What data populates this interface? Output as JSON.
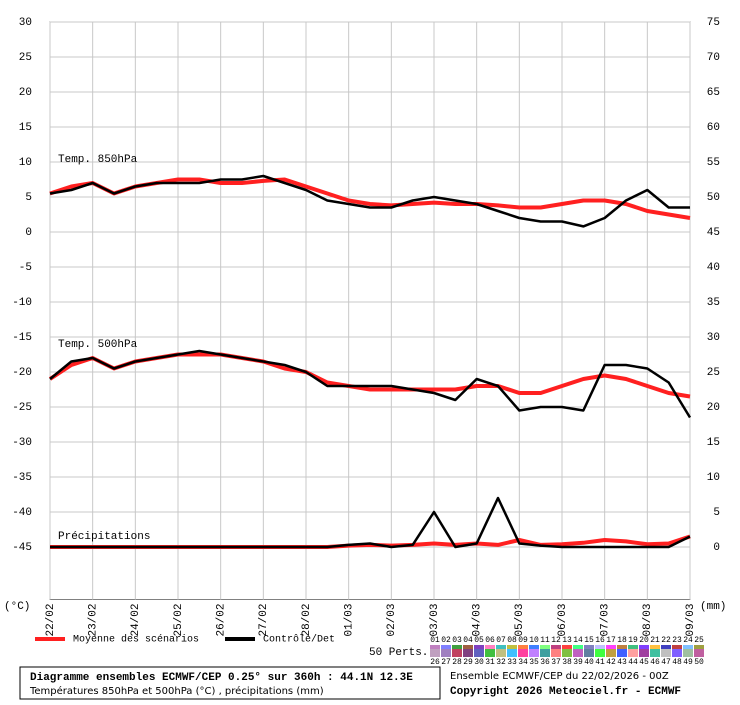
{
  "chart_data": {
    "type": "line",
    "categories": [
      "22/02",
      null,
      "23/02",
      null,
      "24/02",
      null,
      "25/02",
      null,
      "26/02",
      null,
      "27/02",
      null,
      "28/02",
      null,
      "01/03",
      null,
      "02/03",
      null,
      "03/03",
      null,
      "04/03",
      null,
      "05/03",
      null,
      "06/03",
      null,
      "07/03",
      null,
      "08/03",
      null,
      "09/03"
    ],
    "ylim": [
      -52.5,
      30
    ],
    "yticks": [
      30,
      25,
      20,
      15,
      10,
      5,
      0,
      -5,
      -10,
      -15,
      -20,
      -25,
      -30,
      -35,
      -40,
      -45
    ],
    "y2lim": [
      -7.5,
      75
    ],
    "y2ticks": [
      75,
      70,
      65,
      60,
      55,
      50,
      45,
      40,
      35,
      30,
      25,
      20,
      15,
      10,
      5,
      0
    ],
    "ylabel": "(°C)",
    "y2label": "(mm)",
    "grid": true,
    "panels": [
      "Temp. 850hPa",
      "Temp. 500hPa",
      "Précipitations"
    ],
    "series": [
      {
        "name": "Moyenne des scénarios",
        "color": "#ff2020",
        "t850": [
          5.5,
          6.5,
          7,
          5.5,
          6.5,
          7,
          7.5,
          7.5,
          7,
          7,
          7.3,
          7.5,
          6.5,
          5.5,
          4.5,
          4,
          3.8,
          4,
          4.2,
          4,
          4,
          3.8,
          3.5,
          3.5,
          4,
          4.5,
          4.5,
          4,
          3,
          2.5,
          2
        ],
        "t500": [
          -21,
          -19,
          -18,
          -19.5,
          -18.5,
          -18,
          -17.5,
          -17.5,
          -17.5,
          -18,
          -18.5,
          -19.5,
          -20,
          -21.5,
          -22,
          -22.5,
          -22.5,
          -22.5,
          -22.5,
          -22.5,
          -22,
          -22,
          -23,
          -23,
          -22,
          -21,
          -20.5,
          -21,
          -22,
          -23,
          -23.5
        ],
        "precip": [
          0,
          0,
          0,
          0,
          0,
          0,
          0,
          0,
          0,
          0,
          0,
          0,
          0,
          0,
          0.2,
          0.3,
          0.2,
          0.3,
          0.5,
          0.3,
          0.5,
          0.3,
          1,
          0.3,
          0.4,
          0.6,
          1,
          0.8,
          0.4,
          0.5,
          1.5
        ]
      },
      {
        "name": "Contrôle/Det",
        "color": "#000000",
        "t850": [
          5.5,
          6,
          7,
          5.5,
          6.5,
          7,
          7,
          7,
          7.5,
          7.5,
          8,
          7,
          6,
          4.5,
          4,
          3.5,
          3.5,
          4.5,
          5,
          4.5,
          4,
          3,
          2,
          1.5,
          1.5,
          0.8,
          2,
          4.5,
          6,
          3.5,
          3.5
        ],
        "t500": [
          -21,
          -18.5,
          -18,
          -19.5,
          -18.5,
          -18,
          -17.5,
          -17,
          -17.5,
          -18,
          -18.5,
          -19,
          -20,
          -22,
          -22,
          -22,
          -22,
          -22.5,
          -23,
          -24,
          -21,
          -22,
          -25.5,
          -25,
          -25,
          -25.5,
          -19,
          -19,
          -19.5,
          -21.5,
          -26.5
        ],
        "precip": [
          0,
          0,
          0,
          0,
          0,
          0,
          0,
          0,
          0,
          0,
          0,
          0,
          0,
          0,
          0.3,
          0.5,
          0,
          0.3,
          5,
          0,
          0.5,
          7,
          0.5,
          0.2,
          0,
          0,
          0,
          0,
          0,
          0,
          1.5
        ]
      }
    ],
    "perturbations_label": "50 Perts.",
    "perturbations": [
      {
        "name": "01",
        "color": "#c080c0"
      },
      {
        "name": "02",
        "color": "#8080ff"
      },
      {
        "name": "03",
        "color": "#40a040"
      },
      {
        "name": "04",
        "color": "#a06040"
      },
      {
        "name": "05",
        "color": "#8040c0"
      },
      {
        "name": "06",
        "color": "#ff80c0"
      },
      {
        "name": "07",
        "color": "#40c0c0"
      },
      {
        "name": "08",
        "color": "#c0c040"
      },
      {
        "name": "09",
        "color": "#ff8040"
      },
      {
        "name": "10",
        "color": "#4080ff"
      },
      {
        "name": "11",
        "color": "#80ff80"
      },
      {
        "name": "12",
        "color": "#c04080"
      },
      {
        "name": "13",
        "color": "#ff4040"
      },
      {
        "name": "14",
        "color": "#40ff80"
      },
      {
        "name": "15",
        "color": "#8080c0"
      },
      {
        "name": "16",
        "color": "#c0c0ff"
      },
      {
        "name": "17",
        "color": "#ff40ff"
      },
      {
        "name": "18",
        "color": "#c08040"
      },
      {
        "name": "19",
        "color": "#40c080"
      },
      {
        "name": "20",
        "color": "#8040ff"
      },
      {
        "name": "21",
        "color": "#ffc040"
      },
      {
        "name": "22",
        "color": "#4040c0"
      },
      {
        "name": "23",
        "color": "#c04040"
      },
      {
        "name": "24",
        "color": "#80c0ff"
      },
      {
        "name": "25",
        "color": "#a0a040"
      },
      {
        "name": "26",
        "color": "#c0a0c0"
      },
      {
        "name": "27",
        "color": "#a080c0"
      },
      {
        "name": "28",
        "color": "#c04060"
      },
      {
        "name": "29",
        "color": "#804080"
      },
      {
        "name": "30",
        "color": "#6060c0"
      },
      {
        "name": "31",
        "color": "#40c040"
      },
      {
        "name": "32",
        "color": "#c0c080"
      },
      {
        "name": "33",
        "color": "#40c0ff"
      },
      {
        "name": "34",
        "color": "#ff40a0"
      },
      {
        "name": "35",
        "color": "#c080ff"
      },
      {
        "name": "36",
        "color": "#40a0a0"
      },
      {
        "name": "37",
        "color": "#ff8080"
      },
      {
        "name": "38",
        "color": "#80c040"
      },
      {
        "name": "39",
        "color": "#c060c0"
      },
      {
        "name": "40",
        "color": "#6080a0"
      },
      {
        "name": "41",
        "color": "#40ff40"
      },
      {
        "name": "42",
        "color": "#c0a040"
      },
      {
        "name": "43",
        "color": "#4060ff"
      },
      {
        "name": "44",
        "color": "#ffa0a0"
      },
      {
        "name": "45",
        "color": "#a040a0"
      },
      {
        "name": "46",
        "color": "#40c0a0"
      },
      {
        "name": "47",
        "color": "#c0c0c0"
      },
      {
        "name": "48",
        "color": "#8060ff"
      },
      {
        "name": "49",
        "color": "#a0c0a0"
      },
      {
        "name": "50",
        "color": "#c060a0"
      }
    ],
    "footer": {
      "title": "Diagramme ensembles ECMWF/CEP 0.25° sur 360h : 44.1N 12.3E",
      "subtitle": "Températures 850hPa et 500hPa (°C) , précipitations (mm)",
      "run": "Ensemble ECMWF/CEP du 22/02/2026 - 00Z",
      "copyright": "Copyright 2026 Meteociel.fr - ECMWF"
    }
  }
}
